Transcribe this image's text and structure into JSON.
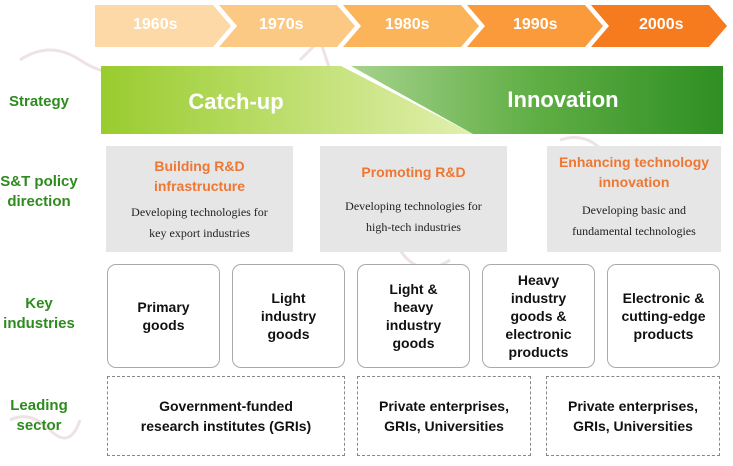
{
  "colors": {
    "label_green": "#2e8b1e",
    "policy_title_orange": "#ee7733",
    "era_1960s": "#fcd9a6",
    "era_1970s": "#fcc985",
    "era_1980s": "#fbb45a",
    "era_1990s": "#fa9a3a",
    "era_2000s": "#f67a1e",
    "strategy_light": "#d8eb9a",
    "strategy_dark": "#3c9a2c",
    "box_gray": "#e6e6e6"
  },
  "eras": [
    "1960s",
    "1970s",
    "1980s",
    "1990s",
    "2000s"
  ],
  "row_labels": {
    "strategy": "Strategy",
    "policy": "S&T policy direction",
    "industries": "Key industries",
    "sector": "Leading sector"
  },
  "strategy": {
    "catchup": "Catch-up",
    "innovation": "Innovation"
  },
  "policy": [
    {
      "title": "Building R&D infrastructure",
      "desc": "Developing technologies for key export industries"
    },
    {
      "title": "Promoting R&D",
      "desc": "Developing technologies for high-tech industries"
    },
    {
      "title": "Enhancing technology innovation",
      "desc": "Developing basic and fundamental technologies"
    }
  ],
  "industries": [
    "Primary goods",
    "Light industry goods",
    "Light & heavy industry goods",
    "Heavy industry goods & electronic products",
    "Electronic & cutting-edge products"
  ],
  "sectors": [
    "Government-funded research institutes (GRIs)",
    "Private enterprises, GRIs, Universities",
    "Private enterprises, GRIs, Universities"
  ]
}
